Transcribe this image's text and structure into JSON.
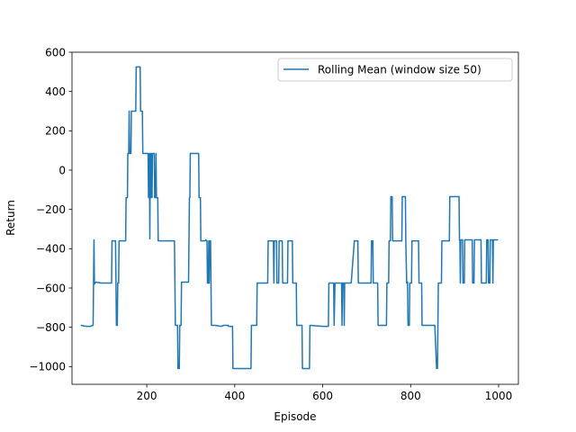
{
  "chart_data": {
    "type": "line",
    "title": "",
    "xlabel": "Episode",
    "ylabel": "Return",
    "xlim": [
      30,
      1045
    ],
    "ylim": [
      -1090,
      600
    ],
    "x_ticks": [
      200,
      400,
      600,
      800,
      1000
    ],
    "y_ticks": [
      -1000,
      -800,
      -600,
      -400,
      -200,
      0,
      200,
      400,
      600
    ],
    "legend": {
      "position": "upper right",
      "entries": [
        "Rolling Mean (window size 50)"
      ]
    },
    "grid": false,
    "series": [
      {
        "name": "Rolling Mean (window size 50)",
        "color": "#1f77b4",
        "points": [
          [
            50,
            -790
          ],
          [
            63,
            -795
          ],
          [
            72,
            -795
          ],
          [
            78,
            -790
          ],
          [
            79,
            -570
          ],
          [
            80,
            -355
          ],
          [
            81,
            -580
          ],
          [
            84,
            -570
          ],
          [
            97,
            -575
          ],
          [
            120,
            -575
          ],
          [
            121,
            -360
          ],
          [
            129,
            -360
          ],
          [
            130,
            -575
          ],
          [
            131,
            -790
          ],
          [
            133,
            -790
          ],
          [
            134,
            -575
          ],
          [
            136,
            -575
          ],
          [
            137,
            -360
          ],
          [
            152,
            -360
          ],
          [
            153,
            -140
          ],
          [
            156,
            -140
          ],
          [
            157,
            85
          ],
          [
            159,
            85
          ],
          [
            160,
            300
          ],
          [
            161,
            85
          ],
          [
            164,
            85
          ],
          [
            165,
            300
          ],
          [
            175,
            300
          ],
          [
            176,
            525
          ],
          [
            185,
            525
          ],
          [
            186,
            300
          ],
          [
            190,
            300
          ],
          [
            191,
            85
          ],
          [
            200,
            85
          ],
          [
            203,
            85
          ],
          [
            204,
            -140
          ],
          [
            206,
            85
          ],
          [
            207,
            -350
          ],
          [
            208,
            85
          ],
          [
            209,
            -140
          ],
          [
            211,
            85
          ],
          [
            212,
            -140
          ],
          [
            213,
            85
          ],
          [
            217,
            85
          ],
          [
            218,
            -140
          ],
          [
            220,
            -140
          ],
          [
            221,
            85
          ],
          [
            222,
            -140
          ],
          [
            225,
            -140
          ],
          [
            226,
            -360
          ],
          [
            263,
            -360
          ],
          [
            264,
            -570
          ],
          [
            265,
            -790
          ],
          [
            270,
            -790
          ],
          [
            271,
            -1010
          ],
          [
            274,
            -1010
          ],
          [
            275,
            -790
          ],
          [
            278,
            -790
          ],
          [
            279,
            -570
          ],
          [
            295,
            -570
          ],
          [
            296,
            -355
          ],
          [
            297,
            -140
          ],
          [
            298,
            -140
          ],
          [
            299,
            85
          ],
          [
            318,
            85
          ],
          [
            319,
            -140
          ],
          [
            322,
            -140
          ],
          [
            323,
            -360
          ],
          [
            333,
            -360
          ],
          [
            334,
            -355
          ],
          [
            336,
            -360
          ],
          [
            337,
            -360
          ],
          [
            338,
            -575
          ],
          [
            340,
            -575
          ],
          [
            341,
            -360
          ],
          [
            342,
            -575
          ],
          [
            343,
            -360
          ],
          [
            345,
            -360
          ],
          [
            346,
            -575
          ],
          [
            347,
            -790
          ],
          [
            355,
            -790
          ],
          [
            369,
            -795
          ],
          [
            375,
            -790
          ],
          [
            385,
            -790
          ],
          [
            386,
            -795
          ],
          [
            395,
            -795
          ],
          [
            396,
            -1010
          ],
          [
            437,
            -1010
          ],
          [
            438,
            -790
          ],
          [
            450,
            -790
          ],
          [
            451,
            -575
          ],
          [
            475,
            -575
          ],
          [
            476,
            -360
          ],
          [
            488,
            -360
          ],
          [
            489,
            -575
          ],
          [
            490,
            -360
          ],
          [
            495,
            -360
          ],
          [
            496,
            -575
          ],
          [
            500,
            -575
          ],
          [
            501,
            -360
          ],
          [
            508,
            -360
          ],
          [
            509,
            -575
          ],
          [
            520,
            -575
          ],
          [
            521,
            -360
          ],
          [
            530,
            -360
          ],
          [
            531,
            -360
          ],
          [
            532,
            -575
          ],
          [
            540,
            -575
          ],
          [
            541,
            -790
          ],
          [
            553,
            -790
          ],
          [
            554,
            -1010
          ],
          [
            570,
            -1010
          ],
          [
            571,
            -790
          ],
          [
            600,
            -795
          ],
          [
            613,
            -795
          ],
          [
            614,
            -575
          ],
          [
            625,
            -575
          ],
          [
            626,
            -790
          ],
          [
            628,
            -575
          ],
          [
            643,
            -575
          ],
          [
            644,
            -790
          ],
          [
            645,
            -575
          ],
          [
            648,
            -575
          ],
          [
            649,
            -790
          ],
          [
            650,
            -575
          ],
          [
            664,
            -575
          ],
          [
            665,
            -570
          ],
          [
            672,
            -360
          ],
          [
            680,
            -360
          ],
          [
            681,
            -575
          ],
          [
            710,
            -575
          ],
          [
            711,
            -360
          ],
          [
            714,
            -360
          ],
          [
            715,
            -575
          ],
          [
            725,
            -575
          ],
          [
            726,
            -790
          ],
          [
            745,
            -790
          ],
          [
            746,
            -575
          ],
          [
            750,
            -575
          ],
          [
            751,
            -360
          ],
          [
            754,
            -360
          ],
          [
            755,
            -135
          ],
          [
            758,
            -135
          ],
          [
            759,
            -360
          ],
          [
            780,
            -360
          ],
          [
            781,
            -135
          ],
          [
            788,
            -135
          ],
          [
            789,
            -360
          ],
          [
            791,
            -575
          ],
          [
            793,
            -570
          ],
          [
            794,
            -790
          ],
          [
            797,
            -790
          ],
          [
            798,
            -575
          ],
          [
            802,
            -575
          ],
          [
            803,
            -360
          ],
          [
            818,
            -360
          ],
          [
            819,
            -575
          ],
          [
            825,
            -575
          ],
          [
            826,
            -790
          ],
          [
            855,
            -790
          ],
          [
            859,
            -1010
          ],
          [
            861,
            -1010
          ],
          [
            862,
            -790
          ],
          [
            863,
            -575
          ],
          [
            870,
            -575
          ],
          [
            871,
            -360
          ],
          [
            888,
            -360
          ],
          [
            889,
            -135
          ],
          [
            910,
            -135
          ],
          [
            911,
            -355
          ],
          [
            912,
            -360
          ],
          [
            913,
            -575
          ],
          [
            914,
            -355
          ],
          [
            918,
            -355
          ],
          [
            919,
            -575
          ],
          [
            922,
            -575
          ],
          [
            923,
            -355
          ],
          [
            940,
            -355
          ],
          [
            941,
            -575
          ],
          [
            944,
            -575
          ],
          [
            945,
            -355
          ],
          [
            960,
            -355
          ],
          [
            961,
            -575
          ],
          [
            972,
            -575
          ],
          [
            973,
            -355
          ],
          [
            976,
            -355
          ],
          [
            977,
            -575
          ],
          [
            980,
            -575
          ],
          [
            981,
            -355
          ],
          [
            986,
            -355
          ],
          [
            987,
            -575
          ],
          [
            988,
            -355
          ],
          [
            999,
            -355
          ]
        ]
      }
    ]
  }
}
